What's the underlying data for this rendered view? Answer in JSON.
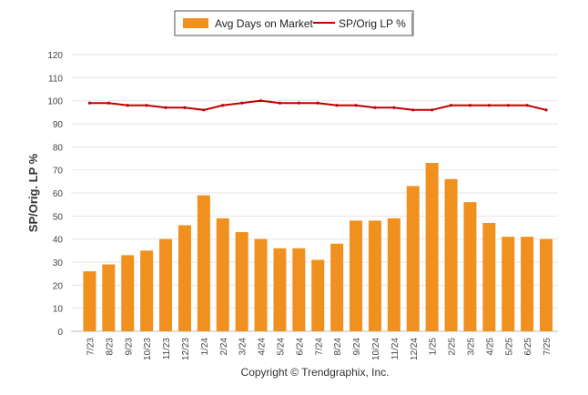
{
  "chart_data": {
    "type": "bar",
    "title": "",
    "xlabel": "",
    "ylabel": "SP/Orig. LP %",
    "ylim": [
      0,
      120
    ],
    "yticks": [
      0,
      10,
      20,
      30,
      40,
      50,
      60,
      70,
      80,
      90,
      100,
      110,
      120
    ],
    "grid": true,
    "legend_position": "top-center",
    "categories": [
      "7/23",
      "8/23",
      "9/23",
      "10/23",
      "11/23",
      "12/23",
      "1/24",
      "2/24",
      "3/24",
      "4/24",
      "5/24",
      "6/24",
      "7/24",
      "8/24",
      "9/24",
      "10/24",
      "11/24",
      "12/24",
      "1/25",
      "2/25",
      "3/25",
      "4/25",
      "5/25",
      "6/25",
      "7/25"
    ],
    "series": [
      {
        "name": "Avg Days on Market",
        "type": "bar",
        "color": "#f0901e",
        "values": [
          26,
          29,
          33,
          35,
          40,
          46,
          59,
          49,
          43,
          40,
          36,
          36,
          31,
          38,
          48,
          48,
          49,
          63,
          73,
          66,
          56,
          47,
          41,
          41,
          40
        ]
      },
      {
        "name": "SP/Orig LP %",
        "type": "line",
        "color": "#c00000",
        "values": [
          99,
          99,
          98,
          98,
          97,
          97,
          96,
          98,
          99,
          100,
          99,
          99,
          99,
          98,
          98,
          97,
          97,
          96,
          96,
          98,
          98,
          98,
          98,
          98,
          96
        ]
      }
    ]
  },
  "footer": {
    "credit": "Copyright © Trendgraphix, Inc."
  }
}
